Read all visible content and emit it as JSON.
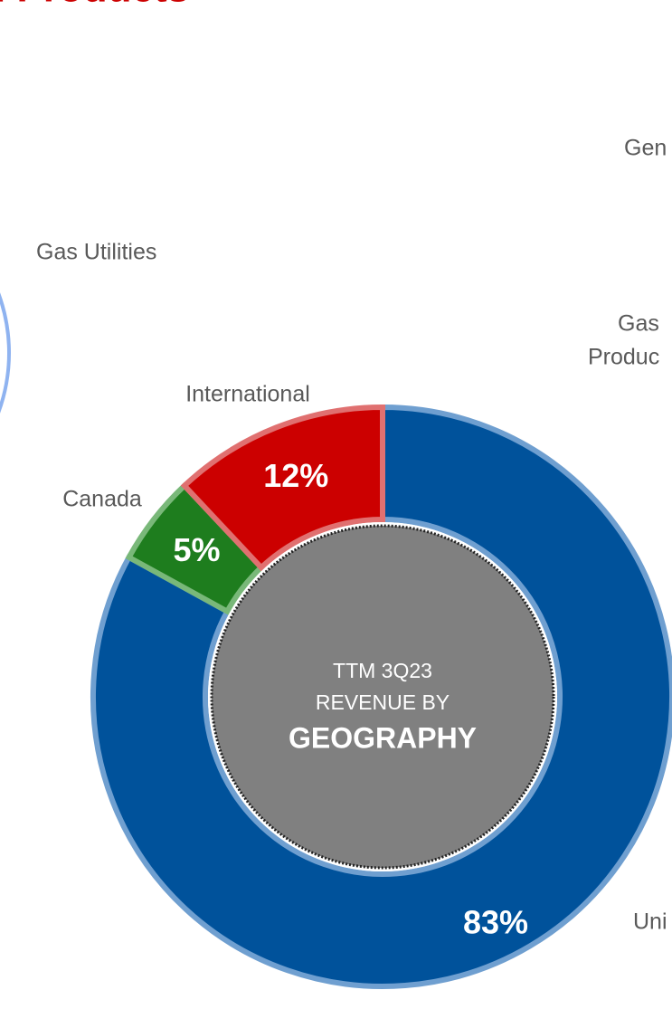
{
  "header": {
    "title": "l Products"
  },
  "annotations": [
    "Gen",
    "Gas Utilities",
    "Gas",
    "Produc"
  ],
  "chart_data": {
    "type": "donut",
    "categories": [
      "Uni",
      "Canada",
      "International"
    ],
    "values": [
      83,
      5,
      12
    ],
    "value_labels": [
      "83%",
      "5%",
      "12%"
    ],
    "colors": [
      "#00529b",
      "#1e7d1e",
      "#cc0000"
    ],
    "edge_colors": [
      "#6f9fd0",
      "#79b879",
      "#e07070"
    ],
    "center_text": [
      "TTM 3Q23",
      "REVENUE BY",
      "GEOGRAPHY"
    ],
    "center_color": "#808080"
  }
}
